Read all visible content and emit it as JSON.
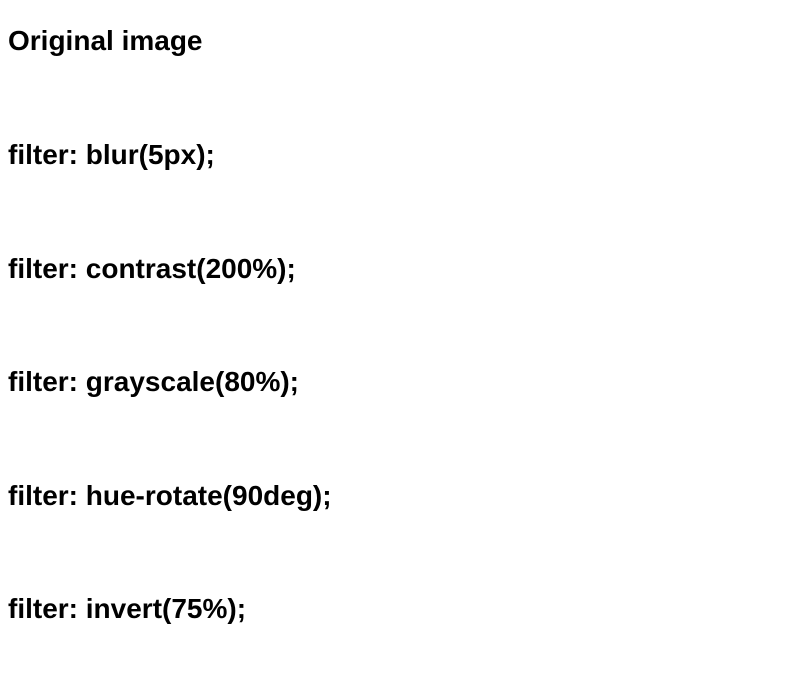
{
  "headings": [
    "Original image",
    "filter: blur(5px);",
    "filter: contrast(200%);",
    "filter: grayscale(80%);",
    "filter: hue-rotate(90deg);",
    "filter: invert(75%);"
  ]
}
